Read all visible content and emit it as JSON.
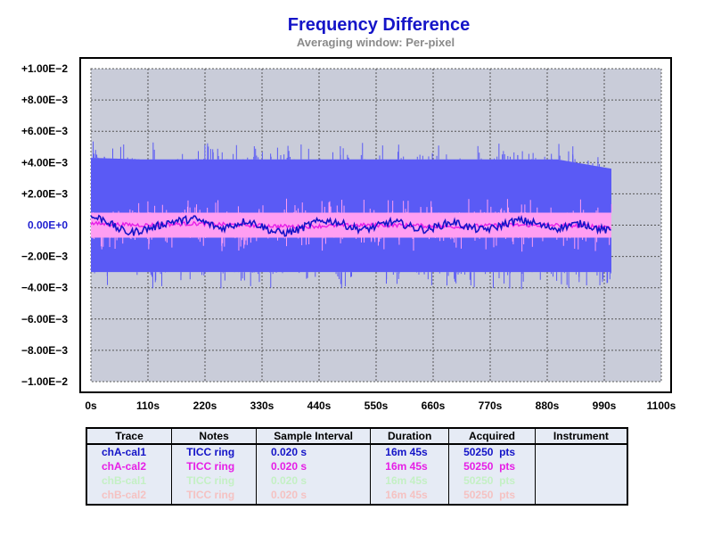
{
  "chart_data": {
    "type": "line",
    "title": "Frequency Difference",
    "subtitle": "Averaging window: Per-pixel",
    "xlabel": "",
    "ylabel": "",
    "x_unit": "s",
    "xlim": [
      0,
      1100
    ],
    "ylim": [
      -0.01,
      0.01
    ],
    "x_ticks": [
      0,
      110,
      220,
      330,
      440,
      550,
      660,
      770,
      880,
      990,
      1100
    ],
    "x_tick_labels": [
      "0s",
      "110s",
      "220s",
      "330s",
      "440s",
      "550s",
      "660s",
      "770s",
      "880s",
      "990s",
      "1100s"
    ],
    "y_ticks": [
      0.01,
      0.008,
      0.006,
      0.004,
      0.002,
      0,
      -0.002,
      -0.004,
      -0.006,
      -0.008,
      -0.01
    ],
    "y_tick_labels": [
      "+1.00E−2",
      "+8.00E−3",
      "+6.00E−3",
      "+4.00E−3",
      "+2.00E−3",
      "0.00E+0",
      "−2.00E−3",
      "−4.00E−3",
      "−6.00E−3",
      "−8.00E−3",
      "−1.00E−2"
    ],
    "grid": true,
    "data_x_range": [
      0,
      1005
    ],
    "series": [
      {
        "name": "chA-cal1",
        "color": "#1414c8",
        "envelope_color": "#5a5af5",
        "envelope_max": [
          0.0043,
          0.0042,
          0.0042,
          0.0042,
          0.0042,
          0.0042,
          0.0042,
          0.0042,
          0.0042,
          0.0042,
          0.0036
        ],
        "envelope_min": [
          -0.003,
          -0.003,
          -0.003,
          -0.003,
          -0.003,
          -0.003,
          -0.003,
          -0.003,
          -0.003,
          -0.003,
          -0.003
        ],
        "envelope_x": [
          0,
          100,
          200,
          300,
          400,
          500,
          600,
          700,
          800,
          900,
          1005
        ],
        "x": [
          0,
          25,
          50,
          75,
          100,
          125,
          150,
          175,
          200,
          225,
          250,
          275,
          300,
          325,
          350,
          375,
          400,
          425,
          450,
          475,
          500,
          525,
          550,
          575,
          600,
          625,
          650,
          675,
          700,
          725,
          750,
          775,
          800,
          825,
          850,
          875,
          900,
          925,
          950,
          975,
          1005
        ],
        "y": [
          0.0005,
          0.0004,
          -0.0002,
          -0.0005,
          -0.0003,
          -0.0001,
          0.0002,
          0.0003,
          0.0004,
          0.0001,
          -0.0002,
          0.0,
          0.0003,
          0.0,
          -0.0004,
          -0.0005,
          -0.0003,
          0.0001,
          0.0003,
          0.0002,
          -0.0001,
          -0.0003,
          -0.0001,
          0.0002,
          0.0001,
          -0.0002,
          -0.0003,
          0.0,
          0.0002,
          -0.0001,
          -0.0003,
          -0.0002,
          0.0001,
          0.0003,
          0.0002,
          -0.0001,
          -0.0002,
          0.0,
          0.0001,
          -0.0002,
          -0.0004
        ]
      },
      {
        "name": "chA-cal2",
        "color": "#e61ee6",
        "envelope_color": "#ff9ef2",
        "envelope_max": [
          0.0008,
          0.0008,
          0.0008,
          0.0008,
          0.0008,
          0.0008,
          0.0008,
          0.0008,
          0.0008,
          0.0008,
          0.0008
        ],
        "envelope_min": [
          -0.0008,
          -0.0008,
          -0.0008,
          -0.0008,
          -0.0008,
          -0.0008,
          -0.0008,
          -0.0008,
          -0.0008,
          -0.0008,
          -0.0008
        ],
        "envelope_x": [
          0,
          100,
          200,
          300,
          400,
          500,
          600,
          700,
          800,
          900,
          1005
        ],
        "x": [
          0,
          100,
          200,
          300,
          400,
          500,
          600,
          700,
          800,
          900,
          1005
        ],
        "y": [
          0.0001,
          0.0,
          0.0001,
          0.0,
          -0.0001,
          0.0,
          0.0,
          -0.0001,
          0.0,
          0.0,
          -0.0001
        ]
      }
    ]
  },
  "table": {
    "headers": [
      "Trace",
      "Notes",
      "Sample Interval",
      "Duration",
      "Acquired",
      "Instrument"
    ],
    "rows": [
      {
        "color": "#1414c8",
        "cells": [
          "chA-cal1",
          "TICC ring",
          "0.020 s",
          "16m 45s",
          "50250  pts",
          ""
        ]
      },
      {
        "color": "#e61ee6",
        "cells": [
          "chA-cal2",
          "TICC ring",
          "0.020 s",
          "16m 45s",
          "50250  pts",
          ""
        ]
      },
      {
        "color": "#c4f0c4",
        "cells": [
          "chB-cal1",
          "TICC ring",
          "0.020 s",
          "16m 45s",
          "50250  pts",
          ""
        ]
      },
      {
        "color": "#f5c2c2",
        "cells": [
          "chB-cal2",
          "TICC ring",
          "0.020 s",
          "16m 45s",
          "50250  pts",
          ""
        ]
      }
    ]
  }
}
